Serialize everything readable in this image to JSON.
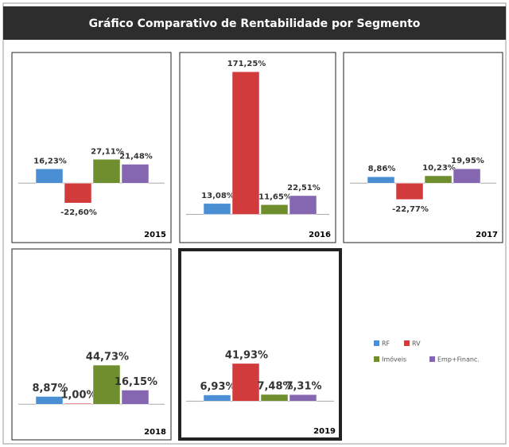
{
  "title": "Gráfico Comparativo de Rentabilidade por Segmento",
  "legend": {
    "names": [
      "RF",
      "RV",
      "Imóveis",
      "Emp+Financ."
    ],
    "colors": [
      "#4a8fd4",
      "#d23b3b",
      "#6f8f2e",
      "#8566b0"
    ]
  },
  "chart_data": [
    {
      "type": "bar",
      "label": "2015",
      "values": [
        16.23,
        -22.6,
        27.11,
        21.48
      ],
      "value_labels": [
        "16,23%",
        "-22,60%",
        "27,11%",
        "21,48%"
      ],
      "ylim": [
        -45,
        135
      ]
    },
    {
      "type": "bar",
      "label": "2016",
      "values": [
        13.08,
        171.25,
        11.65,
        22.51
      ],
      "value_labels": [
        "13,08%",
        "171,25%",
        "11,65%",
        "22,51%"
      ],
      "ylim": [
        -10,
        180
      ]
    },
    {
      "type": "bar",
      "label": "2017",
      "values": [
        8.86,
        -22.77,
        10.23,
        19.95
      ],
      "value_labels": [
        "8,86%",
        "-22,77%",
        "10,23%",
        "19,95%"
      ],
      "ylim": [
        -55,
        165
      ]
    },
    {
      "type": "bar",
      "label": "2018",
      "values": [
        8.87,
        1.0,
        44.73,
        16.15
      ],
      "value_labels": [
        "8,87%",
        "1,00%",
        "44,73%",
        "16,15%"
      ],
      "ylim": [
        -18,
        164
      ]
    },
    {
      "type": "bar",
      "label": "2019",
      "values": [
        6.93,
        41.93,
        7.48,
        7.31
      ],
      "value_labels": [
        "6,93%",
        "41,93%",
        "7,48%",
        "7,31%"
      ],
      "ylim": [
        -20,
        155
      ],
      "highlight": true
    }
  ]
}
